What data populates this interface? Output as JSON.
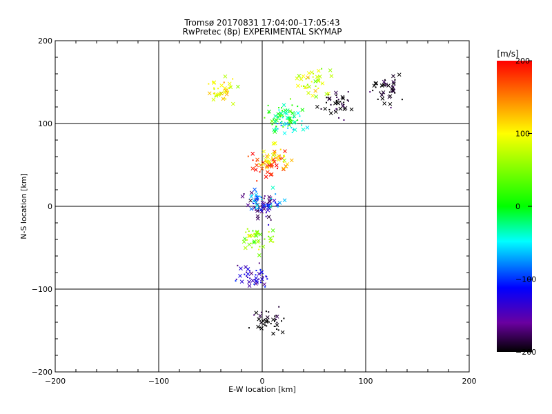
{
  "chart_data": {
    "type": "scatter",
    "title": "Tromsø 20170831 17:04:00–17:05:43",
    "subtitle": "RwPretec (8p) EXPERIMENTAL SKYMAP",
    "xlabel": "E-W location [km]",
    "ylabel": "N-S location [km]",
    "xlim": [
      -200,
      200
    ],
    "ylim": [
      -200,
      200
    ],
    "x_ticks": [
      "−200",
      "−100",
      "0",
      "100",
      "200"
    ],
    "y_ticks": [
      "−200",
      "−100",
      "0",
      "100",
      "200"
    ],
    "grid": true,
    "colorbar": {
      "label": "[m/s]",
      "range": [
        -200,
        200
      ],
      "ticks": [
        "200",
        "100",
        "0",
        "−100",
        "−200"
      ],
      "colormap": "black-purple-blue-cyan-green-yellow-red"
    },
    "marker_types": [
      "x",
      "dot"
    ],
    "point_clusters": [
      {
        "x": 0,
        "y": 0,
        "velocity": -150
      },
      {
        "x": 3,
        "y": 5,
        "velocity": -80
      },
      {
        "x": 3,
        "y": 48,
        "velocity": 190
      },
      {
        "x": 12,
        "y": 60,
        "velocity": 100
      },
      {
        "x": 20,
        "y": 110,
        "velocity": 10
      },
      {
        "x": 25,
        "y": 100,
        "velocity": -40
      },
      {
        "x": -10,
        "y": -85,
        "velocity": -120
      },
      {
        "x": 5,
        "y": -140,
        "velocity": -200
      },
      {
        "x": 70,
        "y": 125,
        "velocity": -200
      },
      {
        "x": 120,
        "y": 140,
        "velocity": -200
      },
      {
        "x": -40,
        "y": 140,
        "velocity": 100
      },
      {
        "x": 50,
        "y": 150,
        "velocity": 80
      },
      {
        "x": -5,
        "y": -40,
        "velocity": 60
      }
    ]
  }
}
